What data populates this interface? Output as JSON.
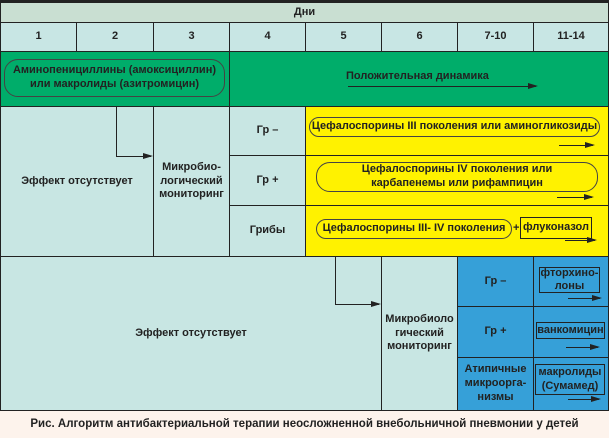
{
  "header": {
    "title": "Дни"
  },
  "days": [
    "1",
    "2",
    "3",
    "4",
    "5",
    "6",
    "7-10",
    "11-14"
  ],
  "first_line": {
    "therapy": "Аминопенициллины (амоксициллин) или макролиды (азитромицин)",
    "positive": "Положительная динамика"
  },
  "second_stage": {
    "no_effect": "Эффект отсутствует",
    "monitoring": "Микробио-логический мониторинг",
    "rows": [
      {
        "group": "Гр –",
        "therapy": "Цефалоспорины III поколения или аминогликозиды"
      },
      {
        "group": "Гр +",
        "therapy": "Цефалоспорины IV поколения или карбапенемы или рифампицин"
      },
      {
        "group": "Грибы",
        "therapy": "Цефалоспорины  III- IV поколения",
        "plus": "+",
        "extra": "флуконазол"
      }
    ]
  },
  "third_stage": {
    "no_effect": "Эффект отсутствует",
    "monitoring": "Микробиоло гический мониторинг",
    "rows": [
      {
        "group": "Гр –",
        "therapy": "фторхино-лоны"
      },
      {
        "group": "Гр +",
        "therapy": "ванкомицин"
      },
      {
        "group": "Атипичные микроорга-низмы",
        "therapy": "макролиды (Сумамед)"
      }
    ]
  },
  "caption": "Рис. Алгоритм антибактериальной терапии неосложненной внебольничной пневмонии у детей",
  "colors": {
    "header": "#c9dfd2",
    "days": "#c8e6e4",
    "green": "#00ad6a",
    "light": "#c8e6e3",
    "yellow": "#fff200",
    "blue": "#36a0d8"
  }
}
